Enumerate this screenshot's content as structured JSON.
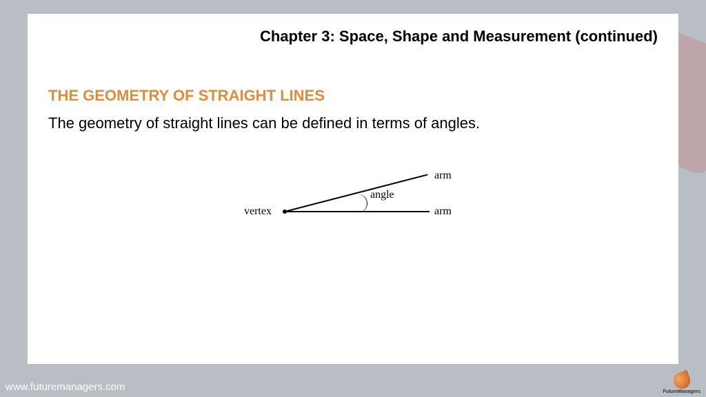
{
  "slide": {
    "chapter_title": "Chapter 3: Space, Shape and Measurement (continued)",
    "section_heading": "THE GEOMETRY OF STRAIGHT LINES",
    "body_text": "The geometry of straight lines can be defined in terms of angles."
  },
  "diagram": {
    "type": "angle-diagram",
    "vertex_label": "vertex",
    "arm_label_upper": "arm",
    "arm_label_lower": "arm",
    "angle_label": "angle",
    "angle_degrees": 14.5,
    "line_color": "#000000",
    "label_font": "serif",
    "label_fontsize": 16
  },
  "footer": {
    "url": "www.futuremanagers.com",
    "logo_text": "FutureManagers"
  },
  "colors": {
    "background": "#b8bec4",
    "slide_bg": "#ffffff",
    "heading": "#e38b3a",
    "text": "#000000",
    "footer_text": "#ffffff"
  }
}
